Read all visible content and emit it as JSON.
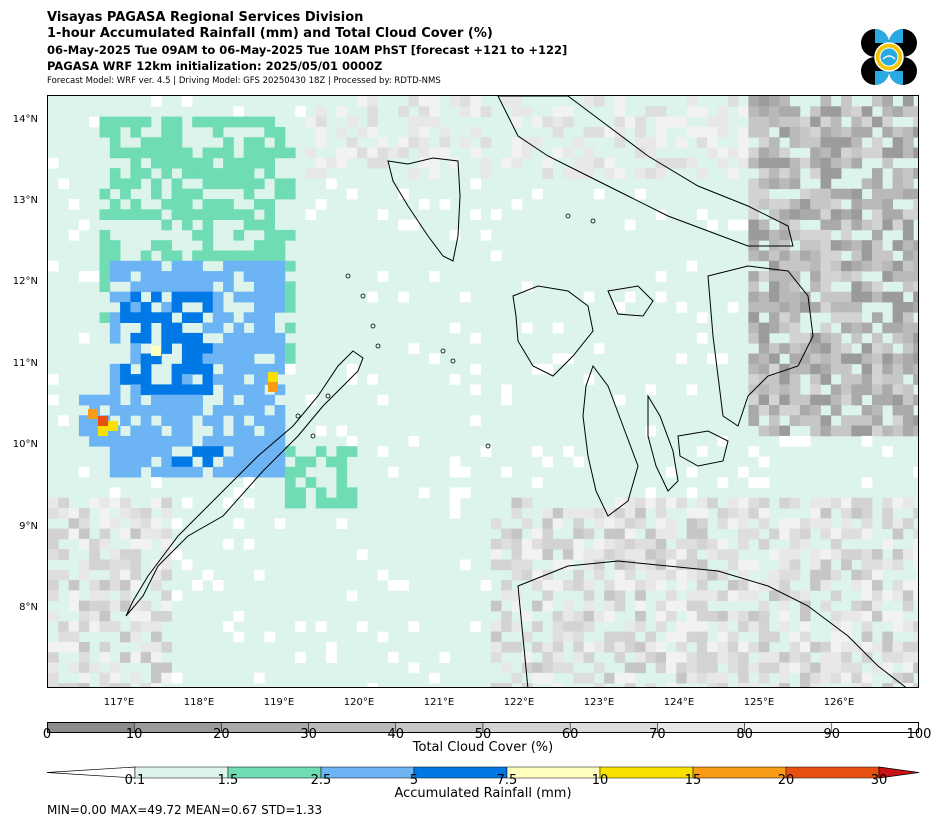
{
  "header": {
    "line1": "Visayas PAGASA Regional Services Division",
    "line2": "1-hour Accumulated Rainfall (mm) and Total Cloud Cover (%)",
    "line3": "06-May-2025 Tue 09AM to 06-May-2025 Tue 10AM PhST [forecast +121 to +122]",
    "line4": "PAGASA WRF 12km initialization: 2025/05/01 0000Z",
    "line5": "Forecast Model: WRF ver. 4.5 | Driving Model: GFS 20250430 18Z | Processed by: RDTD-NMS"
  },
  "logo": {
    "icon": "pagasa-logo-icon",
    "colors": [
      "#000000",
      "#29abe2",
      "#f2c500"
    ]
  },
  "map": {
    "lat_labels": [
      "14°N",
      "13°N",
      "12°N",
      "11°N",
      "10°N",
      "9°N",
      "8°N"
    ],
    "lon_labels": [
      "117°E",
      "118°E",
      "119°E",
      "120°E",
      "121°E",
      "122°E",
      "123°E",
      "124°E",
      "125°E",
      "126°E"
    ],
    "lat_range": [
      7.05,
      14.35
    ],
    "lon_range": [
      116.15,
      127.0
    ]
  },
  "cloud_cover": {
    "title": "Total Cloud Cover (%)",
    "ticks": [
      "0",
      "10",
      "20",
      "30",
      "40",
      "50",
      "60",
      "70",
      "80",
      "90",
      "100"
    ],
    "colors": [
      "#8c8c8c",
      "#9b9b9b",
      "#aaaaaa",
      "#b9b9b9",
      "#c6c6c6",
      "#d3d3d3",
      "#dedede",
      "#e8e8e8",
      "#f2f2f2",
      "#ffffff"
    ]
  },
  "rainfall": {
    "title": "Accumulated Rainfall (mm)",
    "ticks": [
      "0.1",
      "1.5",
      "2.5",
      "5",
      "7.5",
      "10",
      "15",
      "20",
      "30"
    ],
    "colors": [
      "#dcf4ec",
      "#6fdcb4",
      "#6cb4f4",
      "#0078e6",
      "#ffffc0",
      "#f8e000",
      "#f89c18",
      "#e85010"
    ],
    "under_color": "#ffffff",
    "over_color": "#c81414"
  },
  "stats": "MIN=0.00   MAX=49.72   MEAN=0.67   STD=1.33"
}
